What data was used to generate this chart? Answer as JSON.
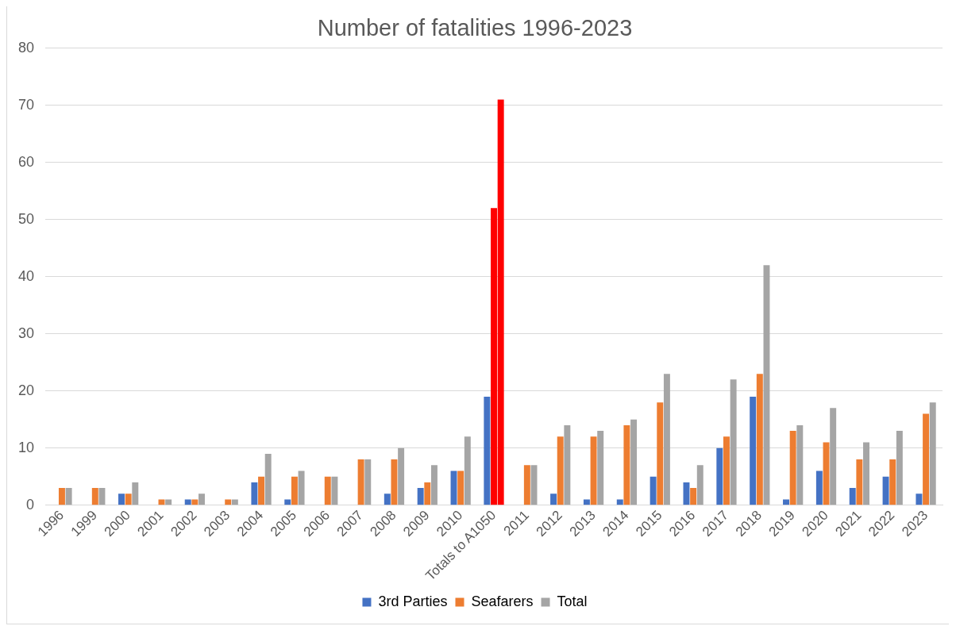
{
  "chart_data": {
    "type": "bar",
    "title": "Number of fatalities 1996-2023",
    "categories": [
      "1996",
      "1999",
      "2000",
      "2001",
      "2002",
      "2003",
      "2004",
      "2005",
      "2006",
      "2007",
      "2008",
      "2009",
      "2010",
      "Totals to A1050",
      "2011",
      "2012",
      "2013",
      "2014",
      "2015",
      "2016",
      "2017",
      "2018",
      "2019",
      "2020",
      "2021",
      "2022",
      "2023"
    ],
    "series": [
      {
        "name": "3rd Parties",
        "color": "#4472c4",
        "values": [
          0,
          0,
          2,
          0,
          1,
          0,
          4,
          1,
          0,
          0,
          2,
          3,
          6,
          19,
          0,
          2,
          1,
          1,
          5,
          4,
          10,
          19,
          1,
          6,
          3,
          5,
          2
        ]
      },
      {
        "name": "Seafarers",
        "color": "#ed7d31",
        "colors": [
          "#ed7d31",
          "#ed7d31",
          "#ed7d31",
          "#ed7d31",
          "#ed7d31",
          "#ed7d31",
          "#ed7d31",
          "#ed7d31",
          "#ed7d31",
          "#ed7d31",
          "#ed7d31",
          "#ed7d31",
          "#ed7d31",
          "#ff0000",
          "#ed7d31",
          "#ed7d31",
          "#ed7d31",
          "#ed7d31",
          "#ed7d31",
          "#ed7d31",
          "#ed7d31",
          "#ed7d31",
          "#ed7d31",
          "#ed7d31",
          "#ed7d31",
          "#ed7d31",
          "#ed7d31"
        ],
        "values": [
          3,
          3,
          2,
          1,
          1,
          1,
          5,
          5,
          5,
          8,
          8,
          4,
          6,
          52,
          7,
          12,
          12,
          14,
          18,
          3,
          12,
          23,
          13,
          11,
          8,
          8,
          16
        ]
      },
      {
        "name": "Total",
        "color": "#a5a5a5",
        "colors": [
          "#a5a5a5",
          "#a5a5a5",
          "#a5a5a5",
          "#a5a5a5",
          "#a5a5a5",
          "#a5a5a5",
          "#a5a5a5",
          "#a5a5a5",
          "#a5a5a5",
          "#a5a5a5",
          "#a5a5a5",
          "#a5a5a5",
          "#a5a5a5",
          "#ff0000",
          "#a5a5a5",
          "#a5a5a5",
          "#a5a5a5",
          "#a5a5a5",
          "#a5a5a5",
          "#a5a5a5",
          "#a5a5a5",
          "#a5a5a5",
          "#a5a5a5",
          "#a5a5a5",
          "#a5a5a5",
          "#a5a5a5",
          "#a5a5a5"
        ],
        "values": [
          3,
          3,
          4,
          1,
          2,
          1,
          9,
          6,
          5,
          8,
          10,
          7,
          12,
          71,
          7,
          14,
          13,
          15,
          23,
          7,
          22,
          42,
          14,
          17,
          11,
          13,
          18
        ]
      }
    ],
    "ylim": [
      0,
      80
    ],
    "yticks": [
      0,
      10,
      20,
      30,
      40,
      50,
      60,
      70,
      80
    ],
    "grid": "y",
    "legend": "bottom"
  }
}
